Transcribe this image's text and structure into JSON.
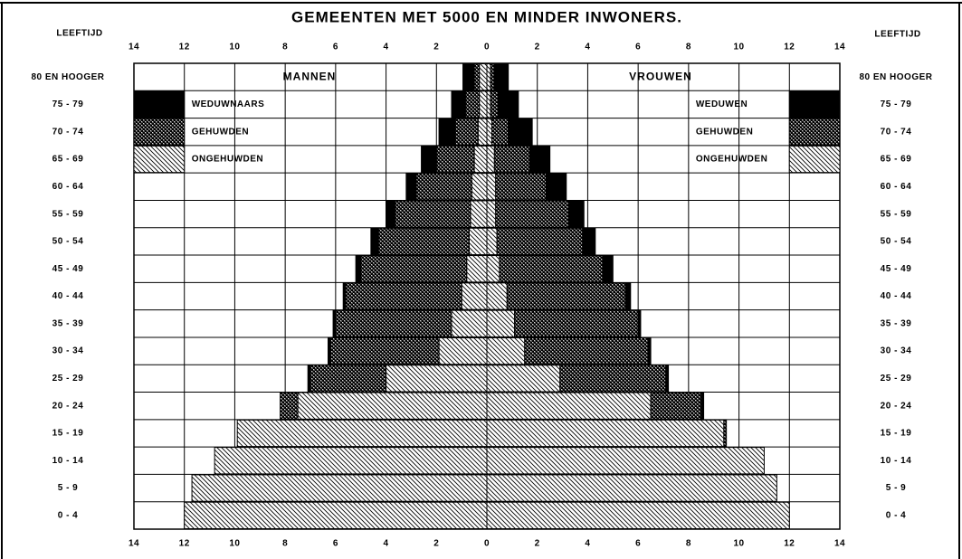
{
  "chart_data": {
    "type": "pyramid",
    "title": "GEMEENTEN MET 5000 EN MINDER INWONERS.",
    "ylabel": "LEEFTIJD",
    "categories": [
      "0 - 4",
      "5 - 9",
      "10 - 14",
      "15 - 19",
      "20 - 24",
      "25 - 29",
      "30 - 34",
      "35 - 39",
      "40 - 44",
      "45 - 49",
      "50 - 54",
      "55 - 59",
      "60 - 64",
      "65 - 69",
      "70 - 74",
      "75 - 79",
      "80 EN HOOGER"
    ],
    "xlim": [
      -14,
      14
    ],
    "xticks": [
      {
        "value": -14,
        "label": "14"
      },
      {
        "value": -12,
        "label": "12"
      },
      {
        "value": -10,
        "label": "10"
      },
      {
        "value": -8,
        "label": "8"
      },
      {
        "value": -6,
        "label": "6"
      },
      {
        "value": -4,
        "label": "4"
      },
      {
        "value": -2,
        "label": "2"
      },
      0,
      2,
      4,
      6,
      8,
      10,
      12,
      14
    ],
    "grid": true,
    "groups": [
      {
        "name": "MANNEN",
        "side": "left",
        "series": [
          {
            "name": "ONGEHUWDEN",
            "pattern": "hatch",
            "values": [
              12.0,
              11.7,
              10.8,
              9.9,
              7.5,
              4.0,
              1.9,
              1.4,
              1.0,
              0.8,
              0.7,
              0.65,
              0.6,
              0.5,
              0.35,
              0.3,
              0.3
            ]
          },
          {
            "name": "GEHUWDEN",
            "pattern": "crosshatch",
            "values": [
              0,
              0,
              0,
              0,
              0.7,
              3.0,
              4.3,
              4.6,
              4.6,
              4.2,
              3.6,
              3.0,
              2.2,
              1.5,
              0.9,
              0.55,
              0.2
            ]
          },
          {
            "name": "WEDUWNAARS",
            "pattern": "solid",
            "values": [
              0,
              0,
              0,
              0,
              0,
              0.1,
              0.1,
              0.1,
              0.1,
              0.2,
              0.3,
              0.35,
              0.4,
              0.6,
              0.65,
              0.55,
              0.45
            ]
          }
        ]
      },
      {
        "name": "VROUWEN",
        "side": "right",
        "series": [
          {
            "name": "ONGEHUWDEN",
            "pattern": "hatch",
            "values": [
              12.0,
              11.5,
              11.0,
              9.4,
              6.5,
              2.9,
              1.5,
              1.1,
              0.8,
              0.5,
              0.4,
              0.35,
              0.35,
              0.3,
              0.2,
              0.15,
              0.15
            ]
          },
          {
            "name": "GEHUWDEN",
            "pattern": "crosshatch",
            "values": [
              0,
              0,
              0,
              0.1,
              2.0,
              4.2,
              4.9,
              4.9,
              4.7,
              4.1,
              3.4,
              2.9,
              2.0,
              1.4,
              0.65,
              0.3,
              0.15
            ]
          },
          {
            "name": "WEDUWEN",
            "pattern": "solid",
            "values": [
              0,
              0,
              0,
              0,
              0.1,
              0.1,
              0.1,
              0.1,
              0.2,
              0.4,
              0.5,
              0.6,
              0.8,
              0.8,
              0.95,
              0.8,
              0.55
            ]
          }
        ]
      }
    ]
  }
}
